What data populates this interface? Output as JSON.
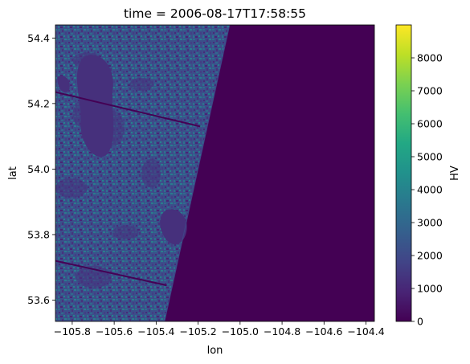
{
  "chart_data": {
    "type": "heatmap",
    "title": "time = 2006-08-17T17:58:55",
    "xlabel": "lon",
    "ylabel": "lat",
    "xlim": [
      -105.88,
      -104.36
    ],
    "ylim": [
      53.535,
      54.44
    ],
    "xticks": [
      -105.8,
      -105.6,
      -105.4,
      -105.2,
      -105.0,
      -104.8,
      -104.6,
      -104.4
    ],
    "xtick_labels": [
      "−105.8",
      "−105.6",
      "−105.4",
      "−105.2",
      "−105.0",
      "−104.8",
      "−104.6",
      "−104.4"
    ],
    "yticks": [
      53.6,
      53.8,
      54.0,
      54.2,
      54.4
    ],
    "ytick_labels": [
      "53.6",
      "53.8",
      "54.0",
      "54.2",
      "54.4"
    ],
    "colorbar": {
      "label": "HV",
      "colormap": "viridis",
      "vmin": 0,
      "vmax": 9000,
      "ticks": [
        0,
        1000,
        2000,
        3000,
        4000,
        5000,
        6000,
        7000,
        8000
      ],
      "tick_labels": [
        "0",
        "1000",
        "2000",
        "3000",
        "4000",
        "5000",
        "6000",
        "7000",
        "8000"
      ]
    },
    "colors": {
      "background_value": "#440154",
      "texture_dark": "#46337e",
      "texture_mid": "#365c8d",
      "texture_light": "#277f8e"
    },
    "data_boundary": {
      "description": "valid swath edge",
      "top": {
        "lon": -105.05,
        "lat": 54.44
      },
      "bottom": {
        "lon": -105.36,
        "lat": 53.535
      }
    },
    "lakes": [
      {
        "lon": -105.66,
        "lat": 54.22,
        "value": 600
      },
      {
        "lon": -105.3,
        "lat": 53.83,
        "value": 600
      }
    ],
    "stripes": [
      {
        "from": {
          "lon": -105.88,
          "lat": 54.235
        },
        "to": {
          "lon": -105.19,
          "lat": 54.13
        }
      },
      {
        "from": {
          "lon": -105.88,
          "lat": 53.72
        },
        "to": {
          "lon": -105.35,
          "lat": 53.645
        }
      }
    ]
  }
}
